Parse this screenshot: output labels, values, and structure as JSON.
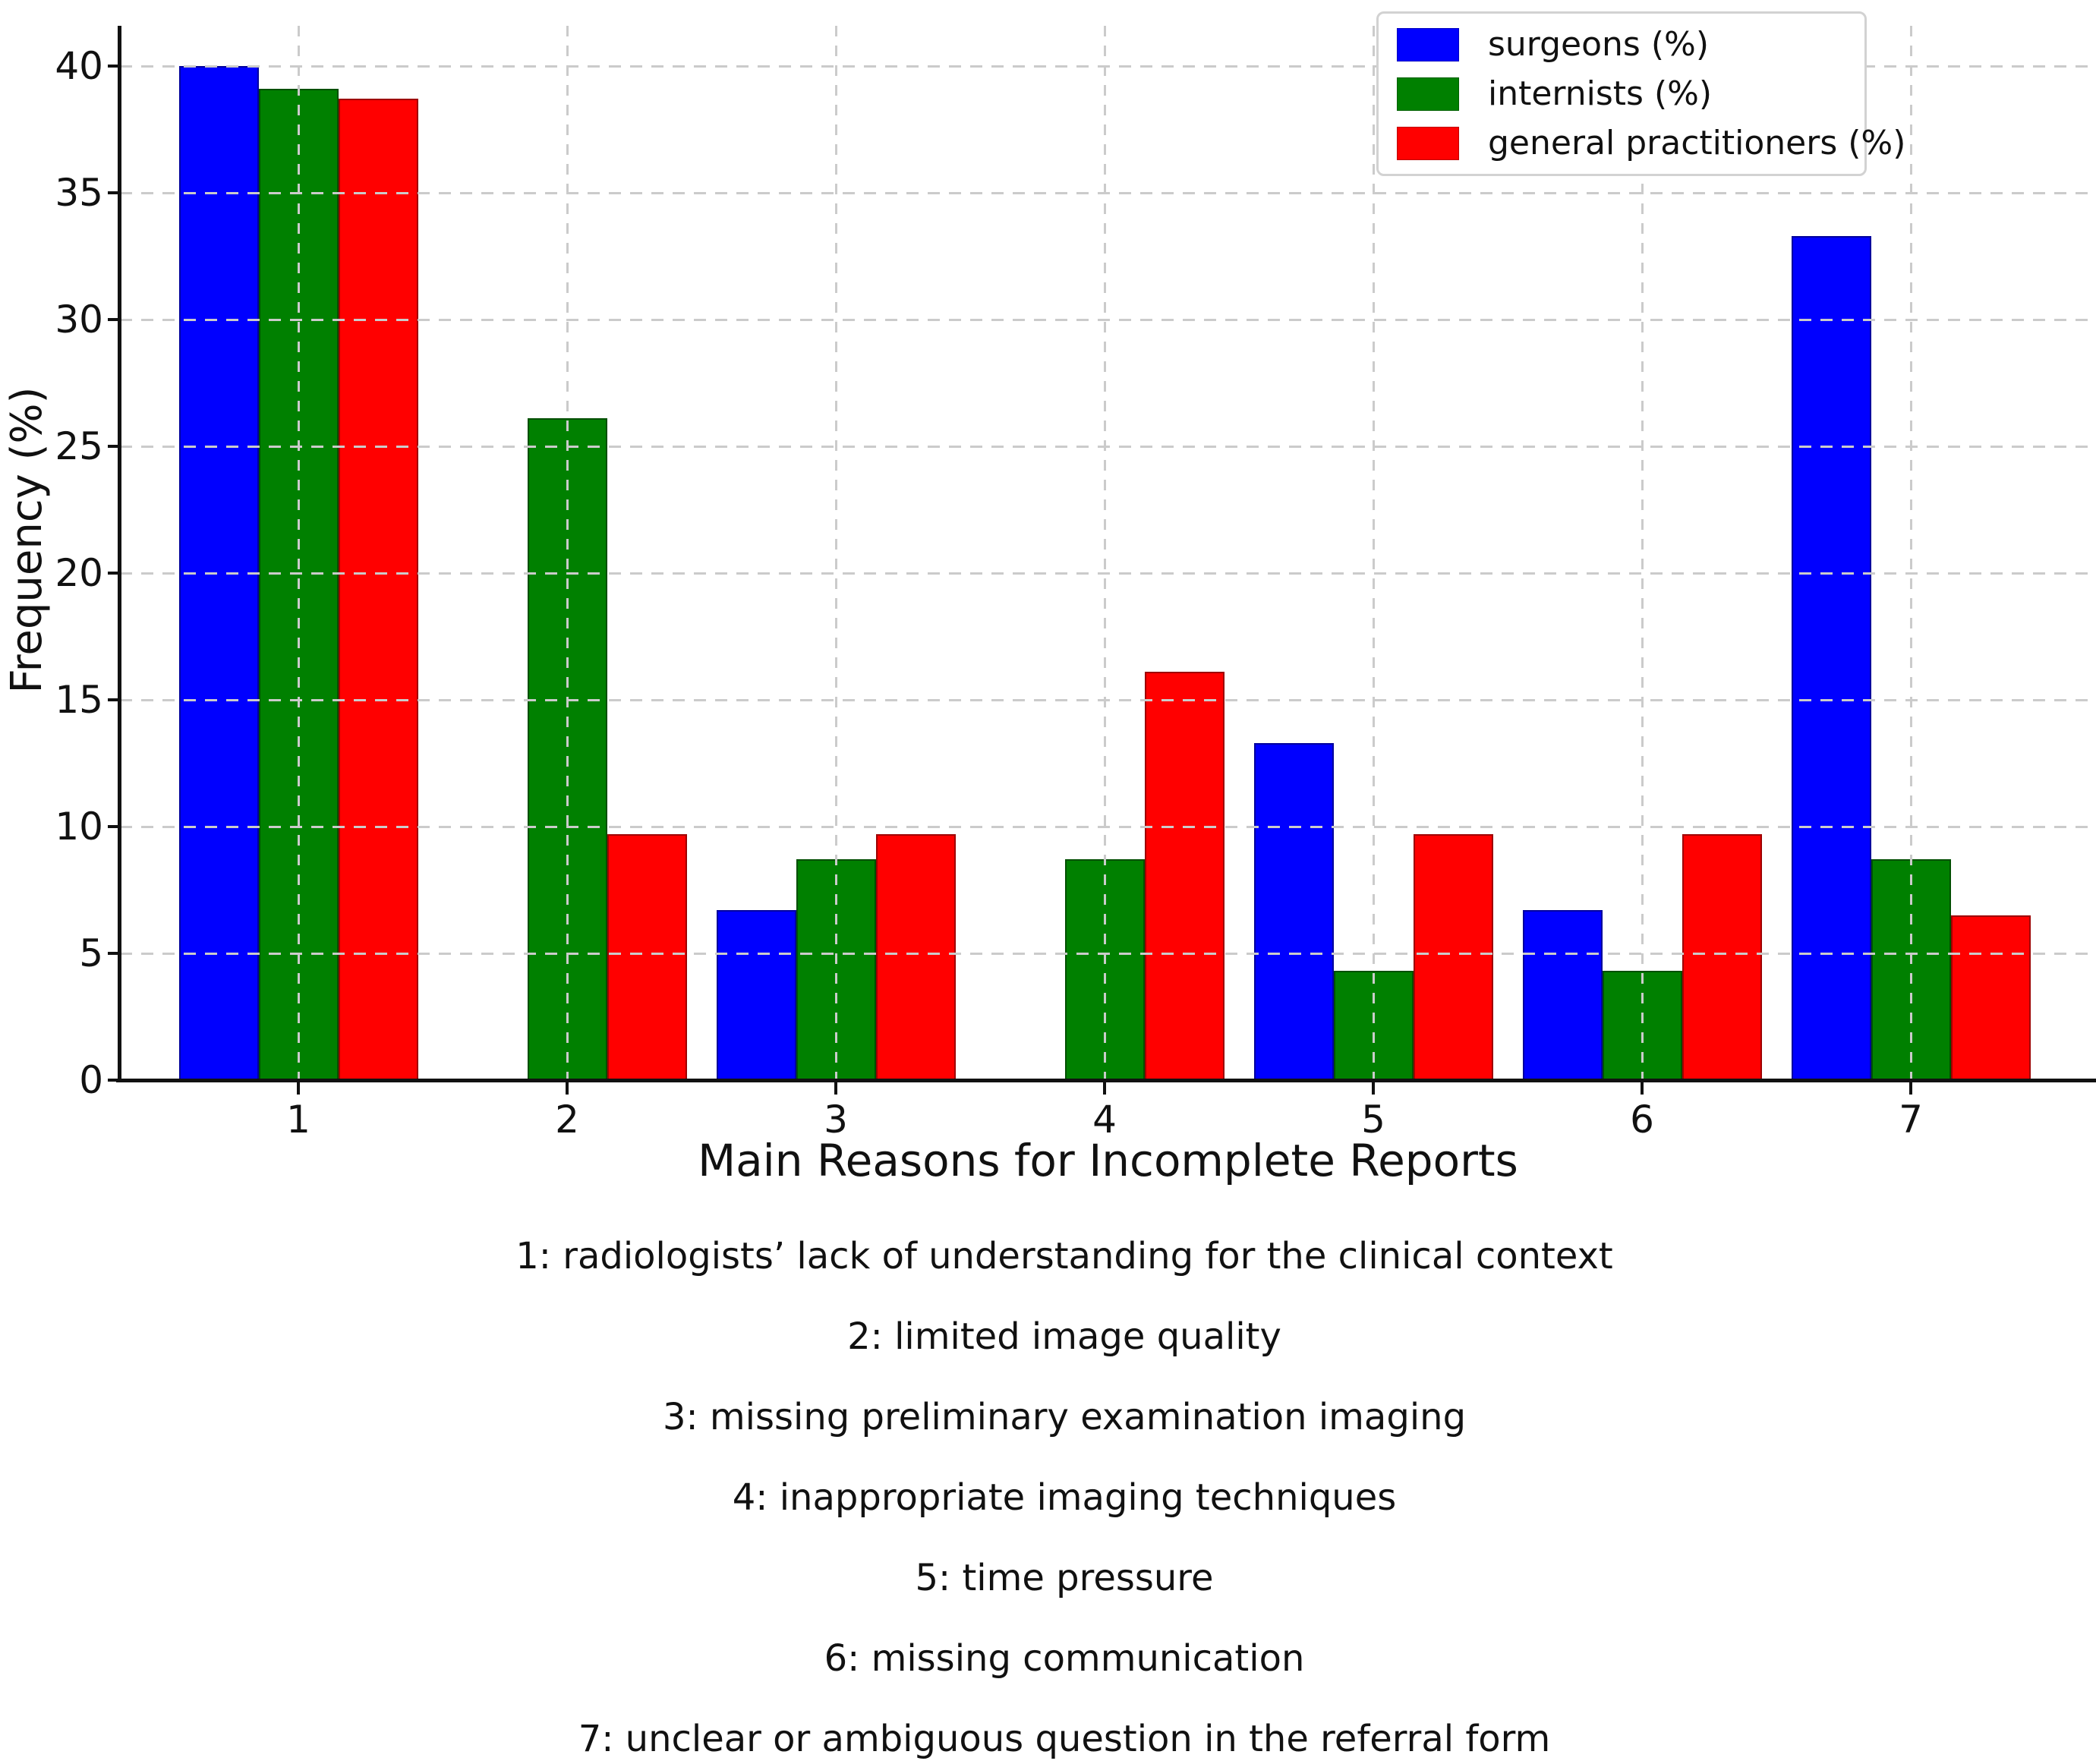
{
  "chart_data": {
    "type": "bar",
    "title": "",
    "xlabel": "Main Reasons for Incomplete Reports",
    "ylabel": "Frequency (%)",
    "categories": [
      "1",
      "2",
      "3",
      "4",
      "5",
      "6",
      "7"
    ],
    "series": [
      {
        "name": "surgeons (%)",
        "color": "#0000ff",
        "values": [
          40.0,
          0,
          6.7,
          0,
          13.3,
          6.7,
          33.3
        ]
      },
      {
        "name": "internists (%)",
        "color": "#008000",
        "values": [
          39.1,
          26.1,
          8.7,
          8.7,
          4.3,
          4.3,
          8.7
        ]
      },
      {
        "name": "general practitioners (%)",
        "color": "#ff0000",
        "values": [
          38.7,
          9.7,
          9.7,
          16.1,
          9.7,
          9.7,
          6.5
        ]
      }
    ],
    "ylim": [
      0,
      41.6
    ],
    "yticks": [
      0,
      5,
      10,
      15,
      20,
      25,
      30,
      35,
      40
    ],
    "grid": true,
    "grid_style": "dashed",
    "grid_color": "#cbcbcb",
    "legend_position": "upper-right",
    "bar_edge_color": "rgba(0,0,0,0.38)"
  },
  "footnotes": [
    "1: radiologists’ lack of understanding for the clinical context",
    "2: limited image quality",
    "3: missing preliminary examination imaging",
    "4: inappropriate imaging techniques",
    "5: time pressure",
    "6: missing communication",
    "7: unclear or ambiguous question in the referral form"
  ]
}
